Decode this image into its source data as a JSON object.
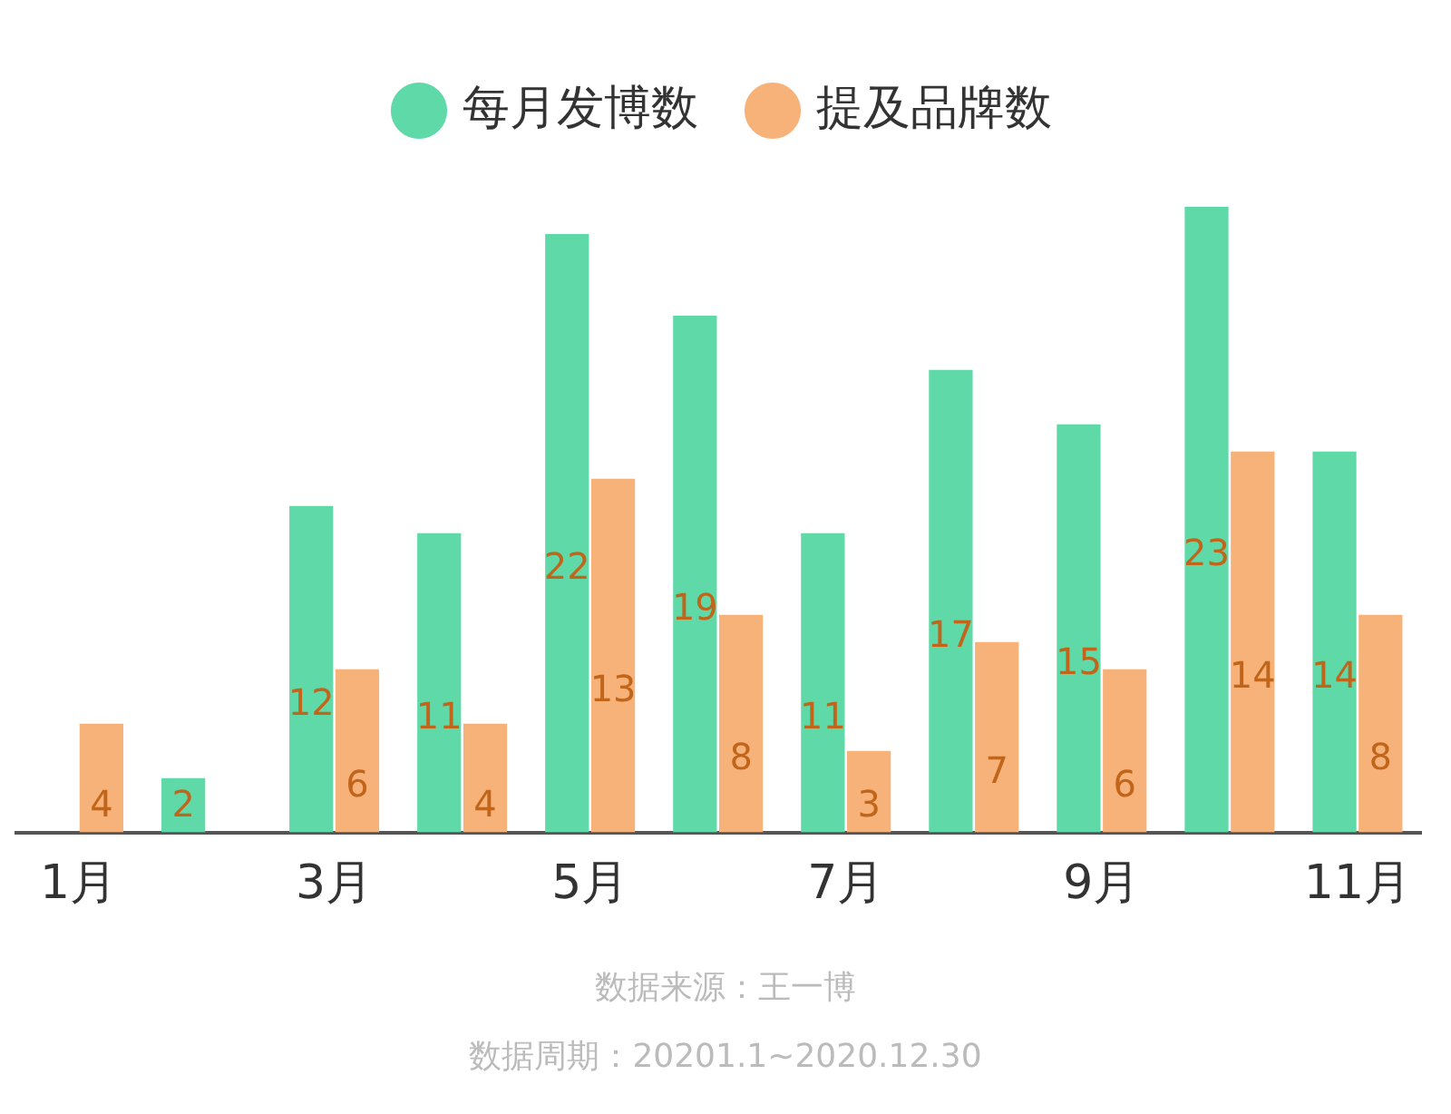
{
  "chart_data": {
    "type": "bar",
    "categories": [
      "1月",
      null,
      "3月",
      null,
      "5月",
      null,
      "7月",
      null,
      "9月",
      null,
      "11月"
    ],
    "series": [
      {
        "name": "每月发博数",
        "color": "#5fd9a8",
        "values": [
          null,
          2,
          12,
          11,
          22,
          19,
          11,
          17,
          15,
          23,
          14
        ]
      },
      {
        "name": "提及品牌数",
        "color": "#f7b27a",
        "values": [
          4,
          null,
          6,
          4,
          13,
          8,
          3,
          7,
          6,
          14,
          8
        ]
      }
    ],
    "data_labels": true,
    "legend": "top",
    "grid": false,
    "annotations": [
      "数据来源：王一博",
      "数据周期：20201.1~2020.12.30"
    ]
  }
}
